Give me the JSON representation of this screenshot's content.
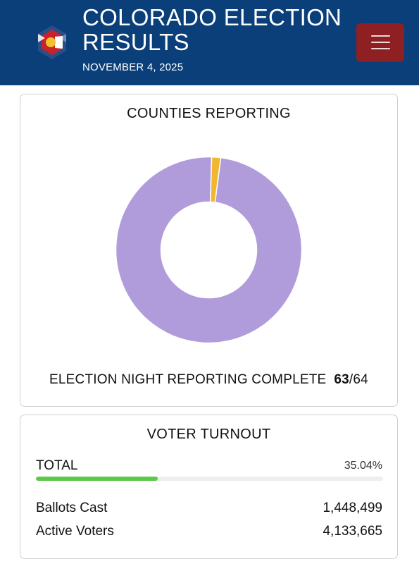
{
  "header": {
    "title": "COLORADO ELECTION RESULTS",
    "date": "NOVEMBER 4, 2025",
    "colors": {
      "background": "#0b3f7a",
      "menu_button": "#8e1f22"
    },
    "logo_icon": "colorado-c-logo-icon",
    "menu_icon": "hamburger-menu-icon"
  },
  "counties": {
    "title": "COUNTIES REPORTING",
    "status_text": "ELECTION NIGHT REPORTING COMPLETE",
    "reported": "63",
    "separator": "/",
    "total": "64"
  },
  "chart_data": {
    "type": "pie",
    "title": "COUNTIES REPORTING",
    "slices": [
      {
        "value": 63,
        "color": "#b19cdb"
      },
      {
        "value": 1,
        "color": "#f2b731"
      }
    ]
  },
  "turnout": {
    "title": "VOTER TURNOUT",
    "total_label": "TOTAL",
    "total_percent_text": "35.04%",
    "total_percent_value": 35.04,
    "bar_color": "#5cc94a",
    "ballots_cast_label": "Ballots Cast",
    "ballots_cast_value": "1,448,499",
    "active_voters_label": "Active Voters",
    "active_voters_value": "4,133,665"
  }
}
